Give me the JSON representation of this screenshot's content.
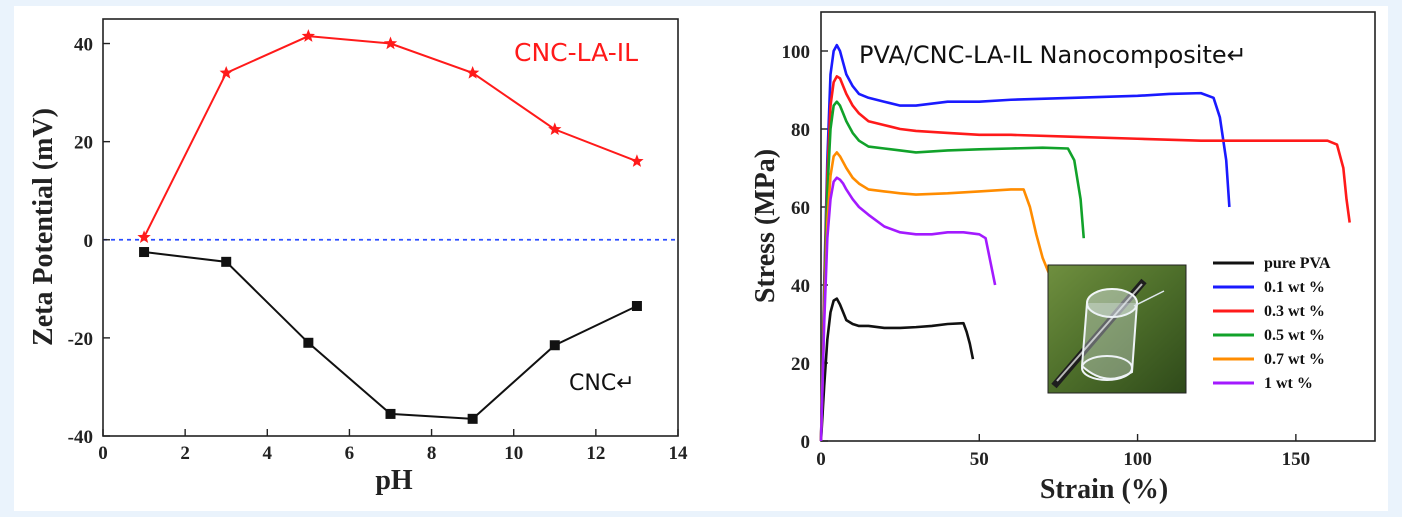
{
  "chart_data": [
    {
      "type": "line",
      "xlabel": "pH",
      "ylabel": "Zeta Potential (mV)",
      "xlim": [
        0,
        14
      ],
      "ylim": [
        -40,
        45
      ],
      "xticks": [
        "0",
        "2",
        "4",
        "6",
        "8",
        "10",
        "12",
        "14"
      ],
      "yticks": [
        "-40",
        "-20",
        "0",
        "20",
        "40"
      ],
      "series": [
        {
          "name": "CNC-LA-IL",
          "color": "#ff1a1a",
          "marker": "star",
          "x": [
            1,
            3,
            5,
            7,
            9,
            11,
            13
          ],
          "y": [
            0.5,
            34,
            41.5,
            40,
            34,
            22.5,
            16
          ]
        },
        {
          "name": "CNC↵",
          "color": "#111111",
          "marker": "square",
          "x": [
            1,
            3,
            5,
            7,
            9,
            11,
            13
          ],
          "y": [
            -2.5,
            -4.5,
            -21,
            -35.5,
            -36.5,
            -21.5,
            -13.5
          ]
        }
      ],
      "reference_line": {
        "y": 0,
        "color": "#2a4cff",
        "style": "dashed"
      }
    },
    {
      "type": "line",
      "title": "PVA/CNC-LA-IL Nanocomposite↵",
      "xlabel": "Strain (%)",
      "ylabel": "Stress (MPa)",
      "xlim": [
        0,
        175
      ],
      "ylim": [
        0,
        110
      ],
      "xticks": [
        "0",
        "50",
        "100",
        "150"
      ],
      "yticks": [
        "0",
        "20",
        "40",
        "60",
        "80",
        "100"
      ],
      "legend_position": "bottom-right",
      "inset_image": "transparent-film-sample-photo",
      "series": [
        {
          "name": "pure PVA",
          "color": "#111111",
          "x": [
            0,
            1,
            2,
            3,
            4,
            5,
            6,
            7,
            8,
            10,
            12,
            15,
            20,
            25,
            30,
            35,
            40,
            45,
            46,
            47,
            48
          ],
          "y": [
            0,
            14,
            26,
            33,
            36,
            36.5,
            35,
            33,
            31,
            30,
            29.5,
            29.5,
            29,
            29,
            29.2,
            29.5,
            30,
            30.2,
            28,
            25,
            21
          ]
        },
        {
          "name": "0.1 wt %",
          "color": "#1a1aff",
          "x": [
            0,
            1,
            2,
            3,
            4,
            5,
            6,
            7,
            8,
            10,
            12,
            15,
            20,
            25,
            30,
            40,
            50,
            60,
            80,
            100,
            110,
            120,
            124,
            126,
            128,
            129
          ],
          "y": [
            0,
            40,
            72,
            94,
            100,
            101.5,
            100,
            97,
            94,
            91,
            89,
            88,
            87,
            86,
            86,
            87,
            87,
            87.5,
            88,
            88.5,
            89,
            89.2,
            88,
            83,
            72,
            60
          ]
        },
        {
          "name": "0.3 wt %",
          "color": "#ff1a1a",
          "x": [
            0,
            1,
            2,
            3,
            4,
            5,
            6,
            7,
            8,
            10,
            12,
            15,
            20,
            25,
            30,
            40,
            50,
            60,
            80,
            100,
            120,
            140,
            150,
            160,
            163,
            165,
            166,
            167
          ],
          "y": [
            0,
            38,
            68,
            86,
            92,
            93.5,
            93,
            91,
            89,
            86,
            84,
            82,
            81,
            80,
            79.5,
            79,
            78.5,
            78.5,
            78,
            77.5,
            77,
            77,
            77,
            77,
            76,
            70,
            62,
            56
          ]
        },
        {
          "name": "0.5 wt %",
          "color": "#11a22a",
          "x": [
            0,
            1,
            2,
            3,
            4,
            5,
            6,
            7,
            8,
            10,
            12,
            15,
            20,
            25,
            30,
            40,
            50,
            60,
            70,
            78,
            80,
            82,
            83
          ],
          "y": [
            0,
            35,
            64,
            80,
            86,
            87,
            86,
            84,
            82,
            79,
            77,
            75.5,
            75,
            74.5,
            74,
            74.5,
            74.8,
            75,
            75.2,
            75,
            72,
            62,
            52
          ]
        },
        {
          "name": "0.7 wt %",
          "color": "#ff8c00",
          "x": [
            0,
            1,
            2,
            3,
            4,
            5,
            6,
            7,
            8,
            10,
            12,
            15,
            20,
            25,
            30,
            40,
            50,
            60,
            64,
            66,
            68,
            70,
            72
          ],
          "y": [
            0,
            32,
            56,
            68,
            73,
            74,
            73,
            71.5,
            70,
            67.5,
            66,
            64.5,
            64,
            63.5,
            63.2,
            63.5,
            64,
            64.5,
            64.5,
            60,
            53,
            47,
            43
          ]
        },
        {
          "name": "1 wt %",
          "color": "#a31aff",
          "x": [
            0,
            1,
            2,
            3,
            4,
            5,
            6,
            7,
            8,
            10,
            12,
            15,
            20,
            25,
            30,
            35,
            40,
            45,
            50,
            52,
            53,
            54,
            55
          ],
          "y": [
            0,
            30,
            52,
            62,
            66.5,
            67.5,
            67,
            66,
            64.5,
            62,
            60,
            58,
            55,
            53.5,
            53,
            53,
            53.5,
            53.5,
            53,
            52,
            48,
            44,
            40
          ]
        }
      ]
    }
  ]
}
